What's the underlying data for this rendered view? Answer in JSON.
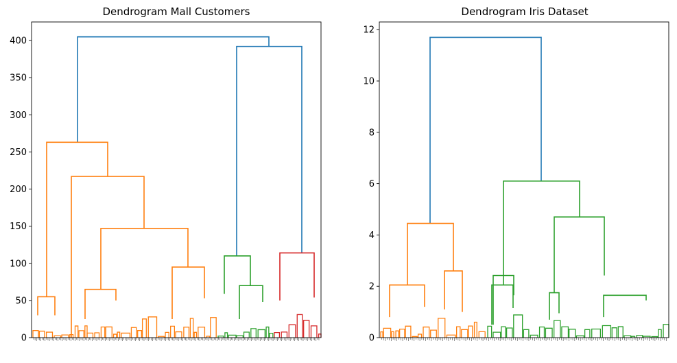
{
  "chart_data": [
    {
      "type": "dendrogram",
      "title": "Dendrogram Mall Customers",
      "xlabel": "",
      "ylabel": "",
      "ylim": [
        0,
        425
      ],
      "yticks": [
        0,
        50,
        100,
        150,
        200,
        250,
        300,
        350,
        400
      ],
      "leaf_count": 200,
      "link_colors": [
        "#ff7f0e",
        "#2ca02c",
        "#d62728",
        "#1f77b4"
      ],
      "grid": false,
      "merges": [
        {
          "height": 405,
          "left": 263,
          "right": 392,
          "color": "#1f77b4"
        },
        {
          "height": 392,
          "left": 110,
          "right": 114,
          "color": "#1f77b4"
        },
        {
          "height": 263,
          "left": 55,
          "right": 217,
          "color": "#ff7f0e"
        },
        {
          "height": 217,
          "left": 0,
          "right": 147,
          "color": "#ff7f0e"
        },
        {
          "height": 147,
          "left": 65,
          "right": 95,
          "color": "#ff7f0e"
        },
        {
          "height": 114,
          "left": 50,
          "right": 54,
          "color": "#d62728"
        },
        {
          "height": 110,
          "left": 59,
          "right": 70,
          "color": "#2ca02c"
        },
        {
          "height": 95,
          "left": 25,
          "right": 53,
          "color": "#ff7f0e"
        },
        {
          "height": 70,
          "left": 25,
          "right": 48,
          "color": "#2ca02c"
        },
        {
          "height": 65,
          "left": 25,
          "right": 50,
          "color": "#ff7f0e"
        },
        {
          "height": 55,
          "left": 30,
          "right": 30,
          "color": "#ff7f0e"
        }
      ]
    },
    {
      "type": "dendrogram",
      "title": "Dendrogram Iris Dataset",
      "xlabel": "",
      "ylabel": "",
      "ylim": [
        0,
        12.3
      ],
      "yticks": [
        0,
        2,
        4,
        6,
        8,
        10,
        12
      ],
      "leaf_count": 150,
      "link_colors": [
        "#ff7f0e",
        "#2ca02c",
        "#1f77b4"
      ],
      "grid": false,
      "merges": [
        {
          "height": 11.7,
          "left": 4.45,
          "right": 6.1,
          "color": "#1f77b4"
        },
        {
          "height": 6.1,
          "left": 2.05,
          "right": 4.7,
          "color": "#2ca02c"
        },
        {
          "height": 4.7,
          "left": 1.75,
          "right": 2.42,
          "color": "#2ca02c"
        },
        {
          "height": 4.45,
          "left": 2.05,
          "right": 2.6,
          "color": "#ff7f0e"
        },
        {
          "height": 2.6,
          "left": 1.1,
          "right": 1.0,
          "color": "#ff7f0e"
        },
        {
          "height": 2.42,
          "left": 0.5,
          "right": 1.65,
          "color": "#2ca02c"
        },
        {
          "height": 2.05,
          "left": 0.8,
          "right": 1.2,
          "color": "#ff7f0e"
        },
        {
          "height": 2.05,
          "left": 0.5,
          "right": 1.15,
          "color": "#2ca02c"
        },
        {
          "height": 1.65,
          "left": 0.8,
          "right": 1.45,
          "color": "#2ca02c"
        },
        {
          "height": 1.75,
          "left": 0.7,
          "right": 0.95,
          "color": "#2ca02c"
        }
      ]
    }
  ]
}
